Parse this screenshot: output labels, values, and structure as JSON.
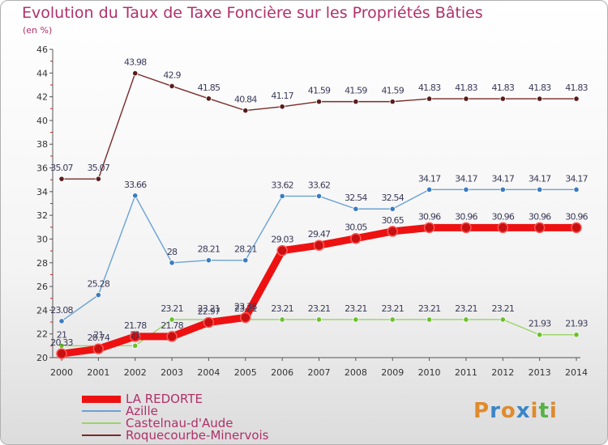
{
  "title": "Evolution du Taux de Taxe Foncière sur les Propriétés Bâties",
  "unit": "(en %)",
  "brand": {
    "letters": [
      "P",
      "r",
      "o",
      "x",
      "i",
      "t",
      "i"
    ],
    "colors": [
      "#e08a2c",
      "#3a86c8",
      "#e08a2c",
      "#3a86c8",
      "#e08a2c",
      "#58b046",
      "#e08a2c"
    ]
  },
  "chart_data": {
    "type": "line",
    "title": "Evolution du Taux de Taxe Foncière sur les Propriétés Bâties",
    "ylabel": "(en %)",
    "xlabel": "",
    "x": [
      "2000",
      "2001",
      "2002",
      "2003",
      "2004",
      "2005",
      "2006",
      "2007",
      "2008",
      "2009",
      "2010",
      "2011",
      "2012",
      "2013",
      "2014"
    ],
    "ylim": [
      20,
      46
    ],
    "yticks": [
      "20",
      "22",
      "24",
      "26",
      "28",
      "30",
      "32",
      "34",
      "36",
      "38",
      "40",
      "42",
      "44",
      "46"
    ],
    "grid": false,
    "legend_position": "bottom-left",
    "series": [
      {
        "name": "LA REDORTE",
        "color": "#ee1111",
        "dot": "#c81010",
        "values": [
          20.33,
          20.74,
          21.78,
          21.78,
          22.97,
          23.38,
          29.03,
          29.47,
          30.05,
          30.65,
          30.96,
          30.96,
          30.96,
          30.96,
          30.96
        ],
        "labels": [
          "20.33",
          "20.74",
          "21.78",
          "21.78",
          "22.97",
          "23.38",
          "29.03",
          "29.47",
          "30.05",
          "30.65",
          "30.96",
          "30.96",
          "30.96",
          "30.96",
          "30.96"
        ]
      },
      {
        "name": "Azille",
        "color": "#6aa2d4",
        "dot": "#3b7cc0",
        "values": [
          23.08,
          25.28,
          33.66,
          28,
          28.21,
          28.21,
          33.62,
          33.62,
          32.54,
          32.54,
          34.17,
          34.17,
          34.17,
          34.17,
          34.17
        ],
        "labels": [
          "23.08",
          "25.28",
          "33.66",
          "28",
          "28.21",
          "28.21",
          "33.62",
          "33.62",
          "32.54",
          "32.54",
          "34.17",
          "34.17",
          "34.17",
          "34.17",
          "34.17"
        ]
      },
      {
        "name": "Castelnau-d'Aude",
        "color": "#9ad468",
        "dot": "#6cc02c",
        "values": [
          21,
          21,
          21,
          23.21,
          23.21,
          23.21,
          23.21,
          23.21,
          23.21,
          23.21,
          23.21,
          23.21,
          23.21,
          21.93,
          21.93
        ],
        "labels": [
          "21",
          "21",
          "21",
          "23.21",
          "23.21",
          "23.21",
          "23.21",
          "23.21",
          "23.21",
          "23.21",
          "23.21",
          "23.21",
          "23.21",
          "21.93",
          "21.93"
        ]
      },
      {
        "name": "Roquecourbe-Minervois",
        "color": "#7a2a2a",
        "dot": "#5a1c1c",
        "values": [
          35.07,
          35.07,
          43.98,
          42.9,
          41.85,
          40.84,
          41.17,
          41.59,
          41.59,
          41.59,
          41.83,
          41.83,
          41.83,
          41.83,
          41.83
        ],
        "labels": [
          "35.07",
          "35.07",
          "43.98",
          "42.9",
          "41.85",
          "40.84",
          "41.17",
          "41.59",
          "41.59",
          "41.59",
          "41.83",
          "41.83",
          "41.83",
          "41.83",
          "41.83"
        ]
      }
    ]
  }
}
